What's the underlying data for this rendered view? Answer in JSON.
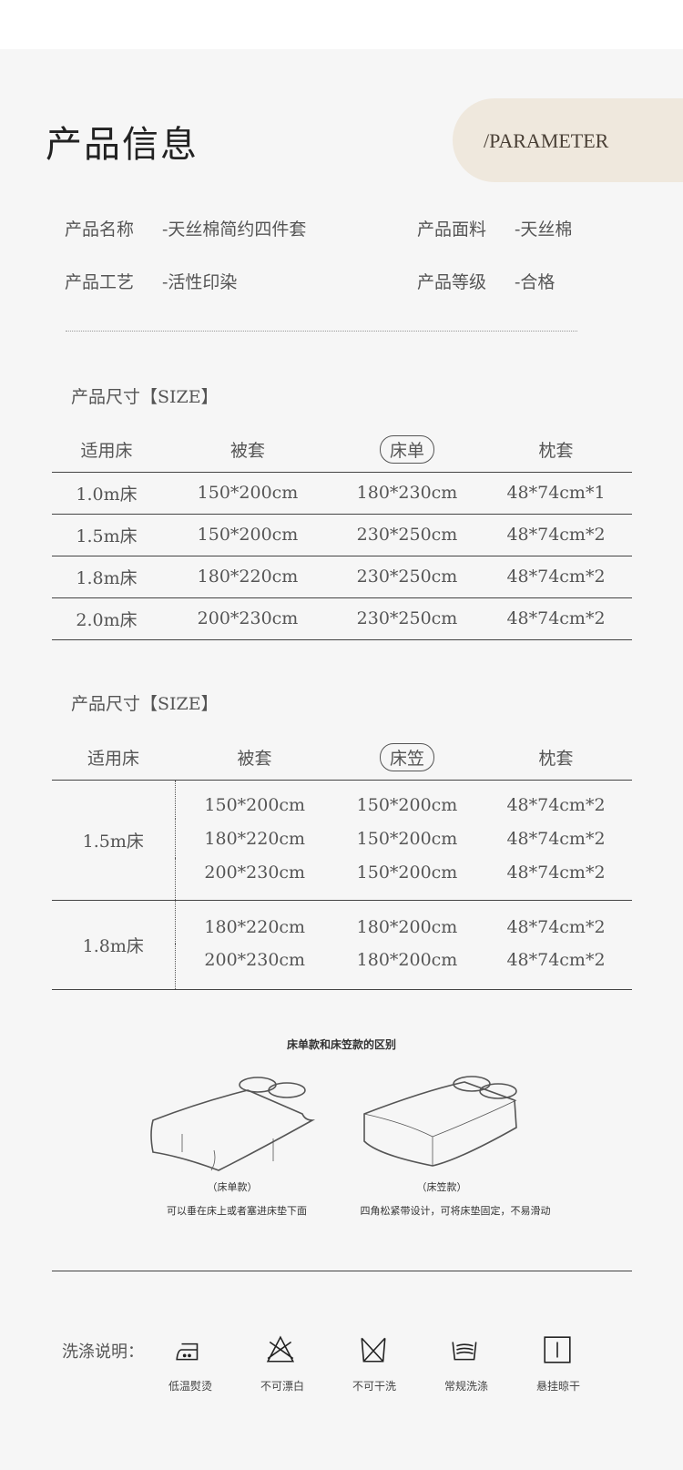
{
  "header": {
    "title": "产品信息",
    "badge": "/PARAMETER",
    "badge_color": "#efe8dd"
  },
  "info": [
    {
      "label": "产品名称",
      "value": "-天丝棉简约四件套"
    },
    {
      "label": "产品面料",
      "value": "-天丝棉"
    },
    {
      "label": "产品工艺",
      "value": "-活性印染"
    },
    {
      "label": "产品等级",
      "value": "-合格"
    }
  ],
  "table1": {
    "title": "产品尺寸【SIZE】",
    "headers": [
      "适用床",
      "被套",
      "床单",
      "枕套"
    ],
    "rows": [
      [
        "1.0m床",
        "150*200cm",
        "180*230cm",
        "48*74cm*1"
      ],
      [
        "1.5m床",
        "150*200cm",
        "230*250cm",
        "48*74cm*2"
      ],
      [
        "1.8m床",
        "180*220cm",
        "230*250cm",
        "48*74cm*2"
      ],
      [
        "2.0m床",
        "200*230cm",
        "230*250cm",
        "48*74cm*2"
      ]
    ]
  },
  "table2": {
    "title": "产品尺寸【SIZE】",
    "headers": [
      "适用床",
      "被套",
      "床笠",
      "枕套"
    ],
    "groups": [
      {
        "bed": "1.5m床",
        "rows": [
          [
            "150*200cm",
            "150*200cm",
            "48*74cm*2"
          ],
          [
            "180*220cm",
            "150*200cm",
            "48*74cm*2"
          ],
          [
            "200*230cm",
            "150*200cm",
            "48*74cm*2"
          ]
        ]
      },
      {
        "bed": "1.8m床",
        "rows": [
          [
            "180*220cm",
            "180*200cm",
            "48*74cm*2"
          ],
          [
            "200*230cm",
            "180*200cm",
            "48*74cm*2"
          ]
        ]
      }
    ]
  },
  "compare": {
    "title": "床单款和床笠款的区别",
    "left": {
      "label": "（床单款）",
      "desc": "可以垂在床上或者塞进床垫下面"
    },
    "right": {
      "label": "（床笠款）",
      "desc": "四角松紧带设计，可将床垫固定，不易滑动"
    }
  },
  "wash": {
    "label": "洗涤说明：",
    "items": [
      {
        "icon": "iron-low-icon",
        "text": "低温熨烫"
      },
      {
        "icon": "no-bleach-icon",
        "text": "不可漂白"
      },
      {
        "icon": "no-dry-clean-icon",
        "text": "不可干洗"
      },
      {
        "icon": "normal-wash-icon",
        "text": "常规洗涤"
      },
      {
        "icon": "hang-dry-icon",
        "text": "悬挂晾干"
      }
    ]
  }
}
